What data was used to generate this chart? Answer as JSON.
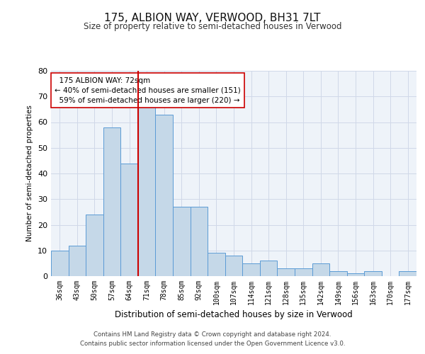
{
  "title": "175, ALBION WAY, VERWOOD, BH31 7LT",
  "subtitle": "Size of property relative to semi-detached houses in Verwood",
  "xlabel": "Distribution of semi-detached houses by size in Verwood",
  "ylabel": "Number of semi-detached properties",
  "categories": [
    "36sqm",
    "43sqm",
    "50sqm",
    "57sqm",
    "64sqm",
    "71sqm",
    "78sqm",
    "85sqm",
    "92sqm",
    "100sqm",
    "107sqm",
    "114sqm",
    "121sqm",
    "128sqm",
    "135sqm",
    "142sqm",
    "149sqm",
    "156sqm",
    "163sqm",
    "170sqm",
    "177sqm"
  ],
  "values": [
    10,
    12,
    24,
    58,
    44,
    67,
    63,
    27,
    27,
    9,
    8,
    5,
    6,
    3,
    3,
    5,
    2,
    1,
    2,
    0,
    2
  ],
  "bar_color": "#c5d8e8",
  "bar_edge_color": "#5b9bd5",
  "highlight_line_index": 5,
  "highlight_line_label": "175 ALBION WAY: 72sqm",
  "pct_smaller": 40,
  "pct_larger": 59,
  "count_smaller": 151,
  "count_larger": 220,
  "annotation_box_color": "#ffffff",
  "annotation_box_edge": "#cc0000",
  "ylim": [
    0,
    80
  ],
  "yticks": [
    0,
    10,
    20,
    30,
    40,
    50,
    60,
    70,
    80
  ],
  "grid_color": "#d0d8e8",
  "background_color": "#eef3f9",
  "footer_line1": "Contains HM Land Registry data © Crown copyright and database right 2024.",
  "footer_line2": "Contains public sector information licensed under the Open Government Licence v3.0."
}
